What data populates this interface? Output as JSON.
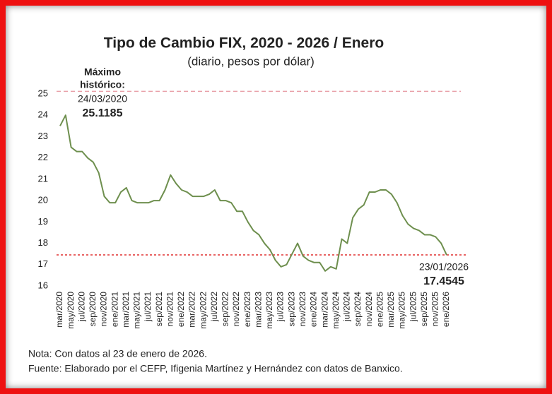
{
  "chart_data": {
    "type": "line",
    "title": "Tipo de Cambio FIX, 2020 - 2026 / Enero",
    "subtitle": "(diario, pesos por dólar)",
    "categories": [
      "mar/2020",
      null,
      "may/2020",
      null,
      "jul/2020",
      null,
      "sep/2020",
      null,
      "nov/2020",
      null,
      "ene/2021",
      null,
      "mar/2021",
      null,
      "may/2021",
      null,
      "jul/2021",
      null,
      "sep/2021",
      null,
      "nov/2021",
      null,
      "ene/2022",
      null,
      "mar/2022",
      null,
      "may/2022",
      null,
      "jul/2022",
      null,
      "sep/2022",
      null,
      "nov/2022",
      null,
      "ene/2023",
      null,
      "mar/2023",
      null,
      "may/2023",
      null,
      "jul/2023",
      null,
      "sep/2023",
      null,
      "nov/2023",
      null,
      "ene/2024",
      null,
      "mar/2024",
      null,
      "may/2024",
      null,
      "jul/2024",
      null,
      "sep/2024",
      null,
      "nov/2024",
      null,
      "ene/2025",
      null,
      "mar/2025",
      null,
      "may/2025",
      null,
      "jul/2025",
      null,
      "sep/2025",
      null,
      "nov/2025",
      null,
      "ene/2026"
    ],
    "series": [
      {
        "name": "Tipo de Cambio FIX",
        "color": "#6e8f4e",
        "values": [
          23.5,
          24.0,
          22.5,
          22.3,
          22.3,
          22.0,
          21.8,
          21.3,
          20.2,
          19.9,
          19.9,
          20.4,
          20.6,
          20.0,
          19.9,
          19.9,
          19.9,
          20.0,
          20.0,
          20.5,
          21.2,
          20.8,
          20.5,
          20.4,
          20.2,
          20.2,
          20.2,
          20.3,
          20.5,
          20.0,
          20.0,
          19.9,
          19.5,
          19.5,
          19.0,
          18.6,
          18.4,
          18.0,
          17.7,
          17.2,
          16.9,
          17.0,
          17.5,
          18.0,
          17.4,
          17.2,
          17.1,
          17.1,
          16.7,
          16.9,
          16.8,
          18.2,
          18.0,
          19.2,
          19.6,
          19.8,
          20.4,
          20.4,
          20.5,
          20.5,
          20.3,
          19.9,
          19.3,
          18.9,
          18.7,
          18.6,
          18.4,
          18.4,
          18.3,
          18.0,
          17.45
        ]
      }
    ],
    "ylim": [
      16,
      25.3
    ],
    "yticks": [
      16,
      17,
      18,
      19,
      20,
      21,
      22,
      23,
      24,
      25
    ],
    "grid": false,
    "annotations": [
      {
        "label": [
          "Máximo",
          "histórico:"
        ],
        "date": "24/03/2020",
        "value": 25.1185,
        "color": "#e8a0a8"
      },
      {
        "date": "23/01/2026",
        "value": 17.4545,
        "color": "#e03030"
      }
    ],
    "notes": [
      "Nota: Con datos al 23 de enero de 2026.",
      "Fuente: Elaborado por el CEFP, Ifigenia Martínez y Hernández con datos de Banxico."
    ]
  }
}
